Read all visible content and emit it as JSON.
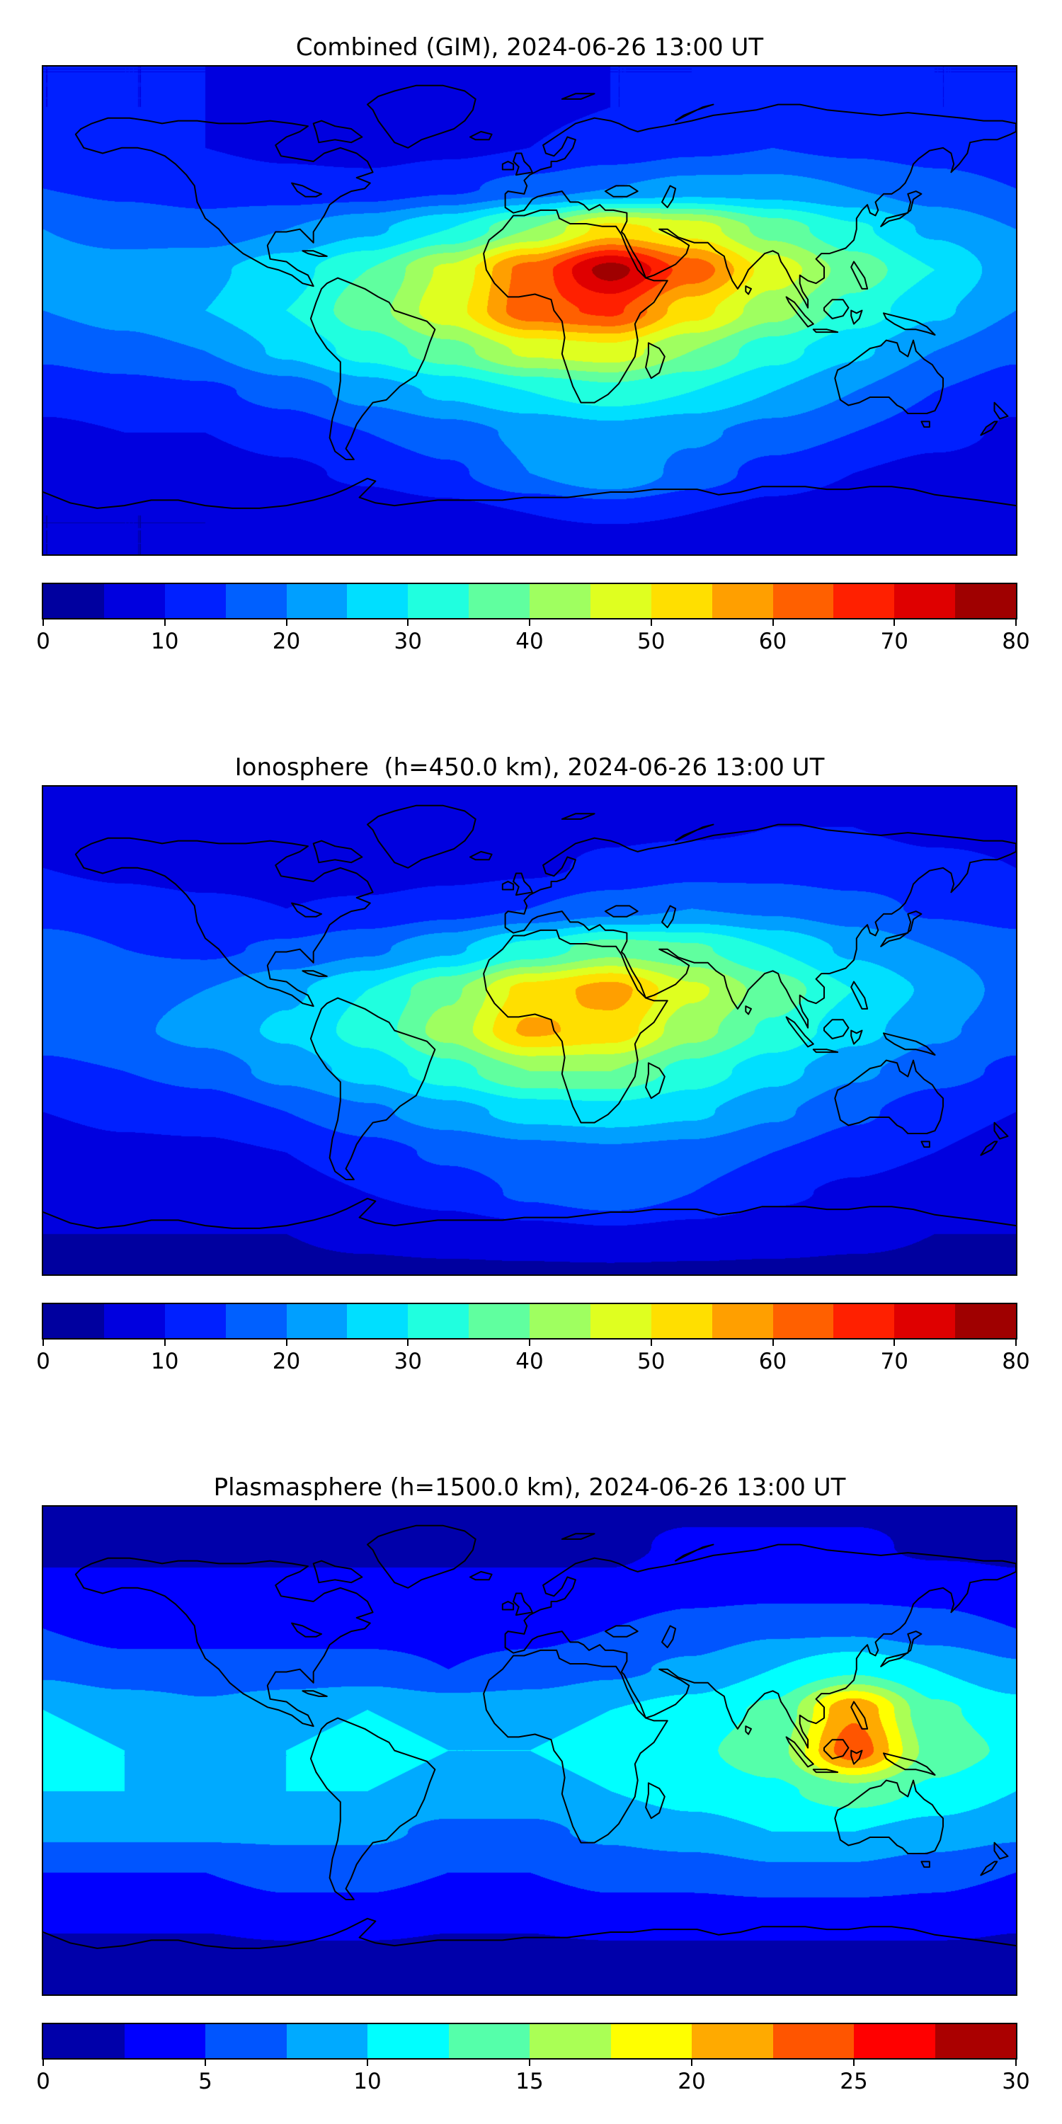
{
  "figure": {
    "background": "#ffffff",
    "colormap": "jet",
    "colormap_endpoints": {
      "low": "#00009f",
      "high": "#9f0000"
    }
  },
  "panels": [
    {
      "title": "Combined (GIM), 2024-06-26 13:00 UT",
      "colorbar": {
        "min": 0,
        "max": 80,
        "ticks": [
          0,
          10,
          20,
          30,
          40,
          50,
          60,
          70,
          80
        ],
        "segments": 16
      }
    },
    {
      "title": "Ionosphere  (h=450.0 km), 2024-06-26 13:00 UT",
      "colorbar": {
        "min": 0,
        "max": 80,
        "ticks": [
          0,
          10,
          20,
          30,
          40,
          50,
          60,
          70,
          80
        ],
        "segments": 16
      }
    },
    {
      "title": "Plasmasphere (h=1500.0 km), 2024-06-26 13:00 UT",
      "colorbar": {
        "min": 0,
        "max": 30,
        "ticks": [
          0,
          5,
          10,
          15,
          20,
          25,
          30
        ],
        "segments": 12
      }
    }
  ],
  "chart_data": [
    {
      "type": "heatmap",
      "style": "filled-contour",
      "title": "Combined (GIM), 2024-06-26 13:00 UT",
      "projection": "equirectangular",
      "lon": [
        -180,
        -150,
        -120,
        -90,
        -60,
        -30,
        0,
        30,
        60,
        90,
        120,
        150,
        180
      ],
      "lat": [
        90,
        75,
        60,
        45,
        30,
        15,
        0,
        -15,
        -30,
        -45,
        -60,
        -75,
        -90
      ],
      "vmin": 0,
      "vmax": 80,
      "levels_step": 5,
      "colormap": "jet",
      "values": [
        [
          10,
          10,
          10,
          10,
          10,
          10,
          10,
          10,
          10,
          10,
          10,
          10,
          10
        ],
        [
          10,
          10,
          10,
          9,
          9,
          9,
          9,
          10,
          10,
          11,
          11,
          10,
          10
        ],
        [
          12,
          11,
          10,
          9,
          8,
          9,
          10,
          12,
          14,
          15,
          14,
          13,
          12
        ],
        [
          15,
          14,
          13,
          12,
          12,
          14,
          17,
          20,
          22,
          22,
          20,
          17,
          15
        ],
        [
          20,
          18,
          17,
          20,
          24,
          30,
          40,
          52,
          48,
          38,
          31,
          24,
          20
        ],
        [
          22,
          22,
          24,
          28,
          35,
          46,
          62,
          77,
          63,
          48,
          38,
          30,
          22
        ],
        [
          20,
          22,
          25,
          30,
          38,
          48,
          63,
          66,
          52,
          42,
          33,
          26,
          20
        ],
        [
          16,
          18,
          20,
          26,
          32,
          38,
          46,
          48,
          40,
          32,
          26,
          20,
          16
        ],
        [
          12,
          13,
          14,
          17,
          22,
          26,
          30,
          33,
          30,
          25,
          20,
          15,
          12
        ],
        [
          9,
          10,
          10,
          12,
          15,
          18,
          21,
          23,
          21,
          18,
          15,
          12,
          9
        ],
        [
          7,
          7,
          8,
          9,
          11,
          14,
          20,
          25,
          18,
          13,
          10,
          8,
          7
        ],
        [
          5,
          5,
          5,
          6,
          7,
          8,
          10,
          11,
          10,
          8,
          7,
          6,
          5
        ],
        [
          5,
          5,
          5,
          5,
          5,
          5,
          5,
          5,
          5,
          5,
          5,
          5,
          5
        ]
      ]
    },
    {
      "type": "heatmap",
      "style": "filled-contour",
      "title": "Ionosphere  (h=450.0 km), 2024-06-26 13:00 UT",
      "projection": "equirectangular",
      "lon": [
        -180,
        -150,
        -120,
        -90,
        -60,
        -30,
        0,
        30,
        60,
        90,
        120,
        150,
        180
      ],
      "lat": [
        90,
        75,
        60,
        45,
        30,
        15,
        0,
        -15,
        -30,
        -45,
        -60,
        -75,
        -90
      ],
      "vmin": 0,
      "vmax": 80,
      "levels_step": 5,
      "colormap": "jet",
      "values": [
        [
          8,
          8,
          8,
          8,
          8,
          8,
          8,
          8,
          8,
          8,
          8,
          8,
          8
        ],
        [
          9,
          9,
          9,
          8,
          8,
          8,
          8,
          9,
          9,
          10,
          10,
          9,
          9
        ],
        [
          10,
          9,
          8,
          8,
          7,
          8,
          9,
          11,
          13,
          13,
          12,
          11,
          10
        ],
        [
          13,
          12,
          11,
          10,
          11,
          13,
          15,
          18,
          20,
          19,
          17,
          14,
          13
        ],
        [
          17,
          15,
          14,
          16,
          19,
          24,
          32,
          38,
          36,
          30,
          24,
          20,
          17
        ],
        [
          18,
          18,
          20,
          24,
          30,
          39,
          52,
          57,
          46,
          38,
          30,
          24,
          18
        ],
        [
          17,
          19,
          22,
          26,
          32,
          42,
          56,
          53,
          42,
          34,
          27,
          21,
          17
        ],
        [
          14,
          15,
          17,
          22,
          27,
          33,
          40,
          40,
          33,
          27,
          21,
          17,
          14
        ],
        [
          10,
          11,
          12,
          15,
          19,
          23,
          27,
          28,
          26,
          21,
          16,
          12,
          10
        ],
        [
          8,
          9,
          9,
          10,
          13,
          16,
          18,
          19,
          18,
          15,
          12,
          10,
          8
        ],
        [
          6,
          6,
          7,
          8,
          10,
          12,
          16,
          19,
          15,
          11,
          9,
          7,
          6
        ],
        [
          5,
          5,
          5,
          5,
          6,
          7,
          8,
          9,
          8,
          7,
          6,
          5,
          5
        ],
        [
          4,
          4,
          4,
          4,
          4,
          4,
          4,
          4,
          4,
          4,
          4,
          4,
          4
        ]
      ]
    },
    {
      "type": "heatmap",
      "style": "filled-contour",
      "title": "Plasmasphere (h=1500.0 km), 2024-06-26 13:00 UT",
      "projection": "equirectangular",
      "lon": [
        -180,
        -150,
        -120,
        -90,
        -60,
        -30,
        0,
        30,
        60,
        90,
        120,
        150,
        180
      ],
      "lat": [
        90,
        75,
        60,
        45,
        30,
        15,
        0,
        -15,
        -30,
        -45,
        -60,
        -75,
        -90
      ],
      "vmin": 0,
      "vmax": 30,
      "levels_step": 2.5,
      "colormap": "jet",
      "values": [
        [
          2,
          2,
          2,
          2,
          2,
          2,
          2,
          2,
          2,
          2,
          2,
          2,
          2
        ],
        [
          2,
          2,
          2,
          2,
          2,
          2,
          2,
          2,
          3,
          3,
          3,
          2,
          2
        ],
        [
          3,
          3,
          3,
          3,
          3,
          3,
          3,
          3,
          4,
          4,
          4,
          4,
          3
        ],
        [
          5,
          4,
          4,
          4,
          4,
          4,
          4,
          5,
          6,
          7,
          7,
          6,
          5
        ],
        [
          7,
          6,
          6,
          6,
          6,
          5,
          6,
          7,
          8,
          10,
          12,
          10,
          8
        ],
        [
          10,
          9,
          8,
          9,
          10,
          9,
          9,
          10,
          11,
          13,
          22,
          13,
          11
        ],
        [
          11,
          10,
          9,
          10,
          11,
          10,
          10,
          11,
          12,
          14,
          24,
          14,
          12
        ],
        [
          10,
          10,
          9,
          10,
          10,
          9,
          9,
          10,
          11,
          12,
          14,
          12,
          10
        ],
        [
          8,
          8,
          8,
          8,
          8,
          7,
          7,
          8,
          9,
          10,
          10,
          9,
          8
        ],
        [
          5,
          5,
          5,
          6,
          6,
          5,
          5,
          6,
          6,
          7,
          7,
          6,
          5
        ],
        [
          3,
          3,
          3,
          4,
          4,
          3,
          3,
          4,
          4,
          4,
          4,
          4,
          3
        ],
        [
          2,
          2,
          2,
          2,
          2,
          2,
          2,
          2,
          2,
          2,
          2,
          2,
          2
        ],
        [
          2,
          2,
          2,
          2,
          2,
          2,
          2,
          2,
          2,
          2,
          2,
          2,
          2
        ]
      ]
    }
  ]
}
